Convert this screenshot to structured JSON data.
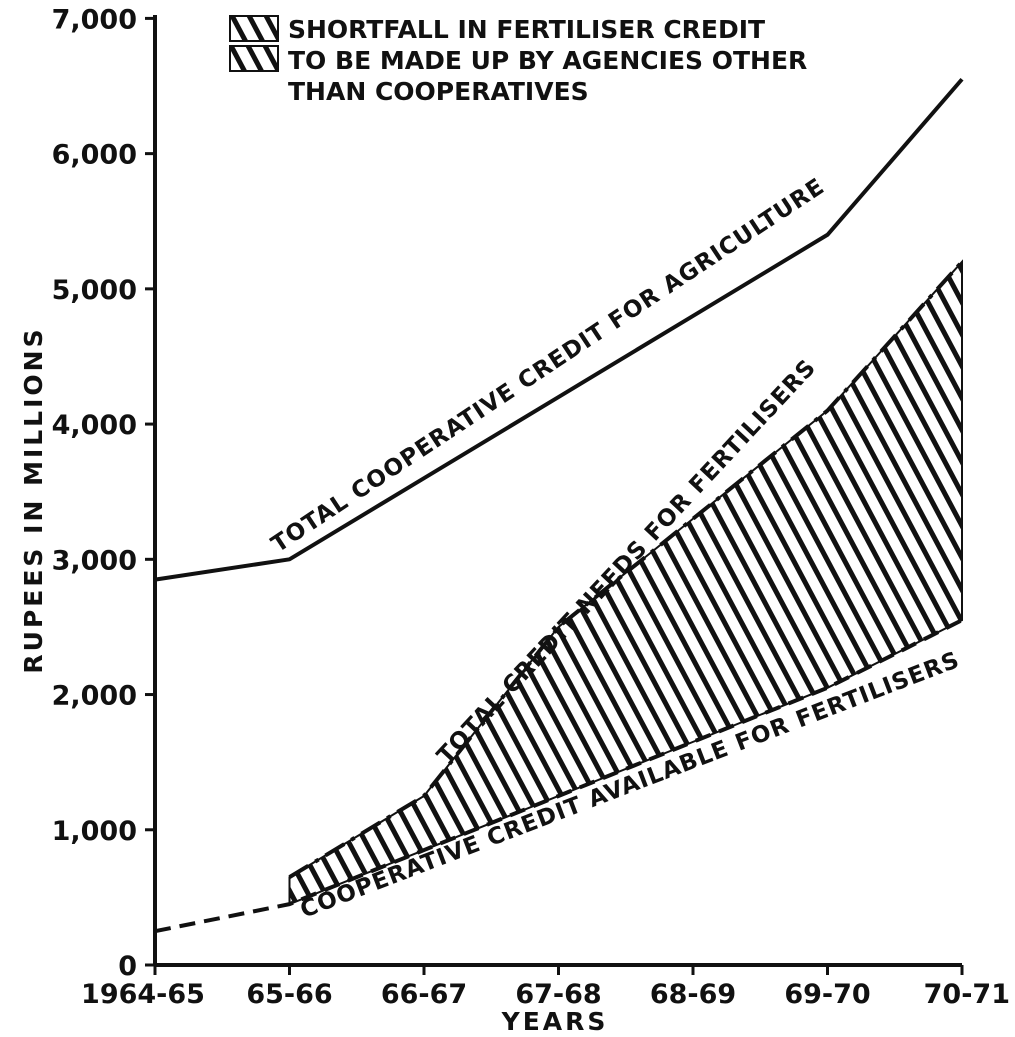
{
  "chart_data": {
    "type": "line",
    "xlabel": "YEARS",
    "ylabel": "RUPEES IN MILLIONS",
    "categories": [
      "1964-65",
      "65-66",
      "66-67",
      "67-68",
      "68-69",
      "69-70",
      "70-71"
    ],
    "ylim": [
      0,
      7000
    ],
    "y_ticks": [
      0,
      1000,
      2000,
      3000,
      4000,
      5000,
      6000,
      7000
    ],
    "y_tick_labels": [
      "0",
      "1,000",
      "2,000",
      "3,000",
      "4,000",
      "5,000",
      "6,000",
      "7,000"
    ],
    "grid": false,
    "legend": {
      "placement": "top",
      "lines": [
        "SHORTFALL IN FERTILISER CREDIT",
        "TO BE MADE UP BY AGENCIES OTHER",
        "THAN COOPERATIVES"
      ]
    },
    "series": [
      {
        "name": "TOTAL COOPERATIVE CREDIT FOR AGRICULTURE",
        "style": "solid",
        "values": [
          2850,
          3000,
          3600,
          4200,
          4800,
          5400,
          6550
        ]
      },
      {
        "name": "TOTAL CREDIT NEEDS FOR FERTILISERS",
        "style": "dash-dot",
        "values": [
          null,
          650,
          1250,
          2500,
          3300,
          4100,
          5200
        ]
      },
      {
        "name": "COOPERATIVE CREDIT AVAILABLE FOR FERTILISERS",
        "style": "dashed",
        "values": [
          250,
          450,
          850,
          1250,
          1650,
          2050,
          2550
        ]
      }
    ]
  }
}
